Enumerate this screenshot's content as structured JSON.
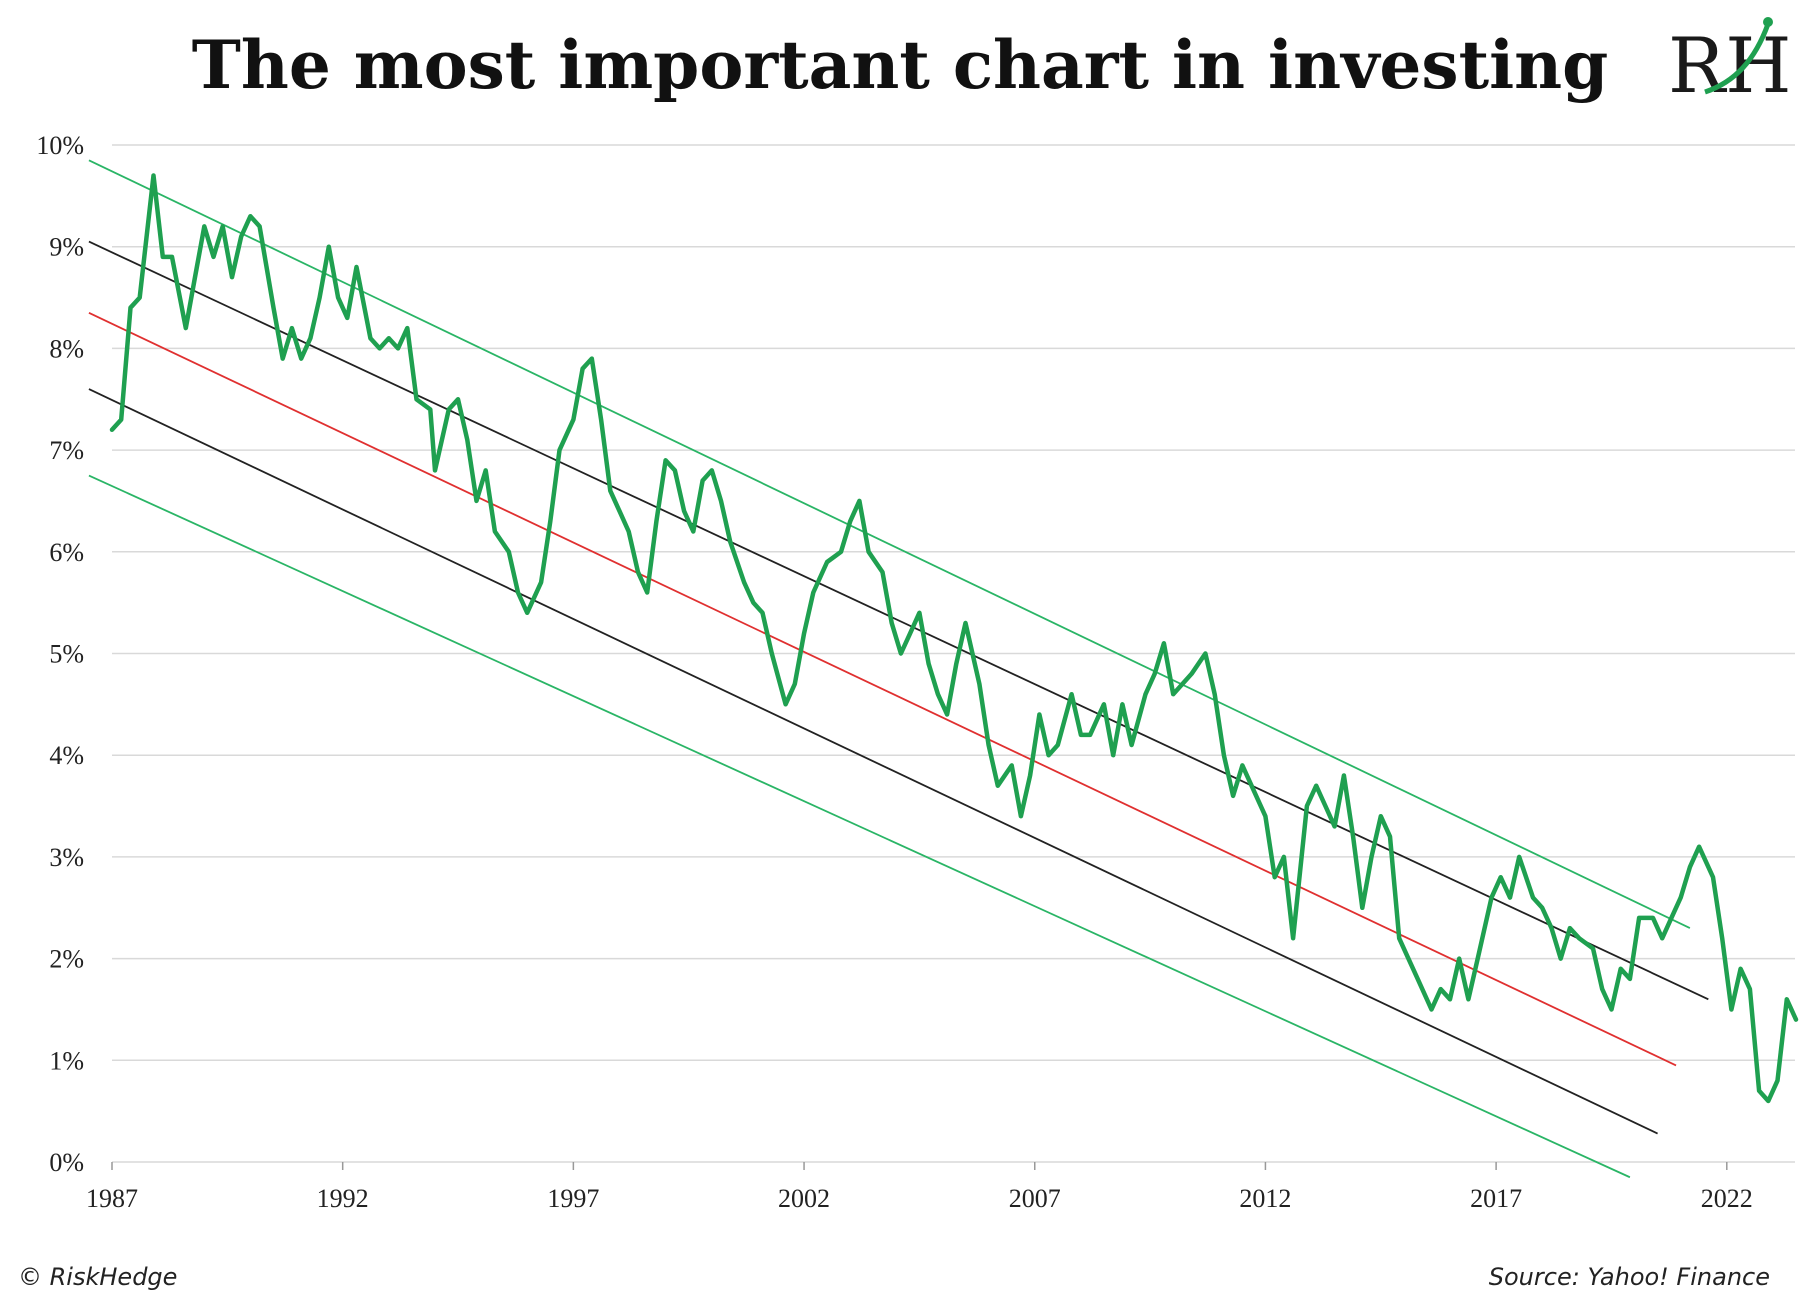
{
  "chart_data": {
    "type": "line",
    "title": "The most important chart in investing",
    "xlabel": "",
    "ylabel": "",
    "x_ticks": [
      "1987",
      "1992",
      "1997",
      "2002",
      "2007",
      "2012",
      "2017",
      "2022"
    ],
    "y_ticks": [
      "0%",
      "1%",
      "2%",
      "3%",
      "4%",
      "5%",
      "6%",
      "7%",
      "8%",
      "9%",
      "10%"
    ],
    "xlim": [
      1987,
      2023.5
    ],
    "ylim": [
      0,
      10
    ],
    "grid": "horizontal",
    "legend": "none",
    "series": [
      {
        "color": "#1fa050",
        "points": [
          [
            1987.0,
            7.2
          ],
          [
            1987.2,
            7.3
          ],
          [
            1987.4,
            8.4
          ],
          [
            1987.6,
            8.5
          ],
          [
            1987.9,
            9.7
          ],
          [
            1988.1,
            8.9
          ],
          [
            1988.3,
            8.9
          ],
          [
            1988.6,
            8.2
          ],
          [
            1988.8,
            8.7
          ],
          [
            1989.0,
            9.2
          ],
          [
            1989.2,
            8.9
          ],
          [
            1989.4,
            9.2
          ],
          [
            1989.6,
            8.7
          ],
          [
            1989.8,
            9.1
          ],
          [
            1990.0,
            9.3
          ],
          [
            1990.2,
            9.2
          ],
          [
            1990.5,
            8.4
          ],
          [
            1990.7,
            7.9
          ],
          [
            1990.9,
            8.2
          ],
          [
            1991.1,
            7.9
          ],
          [
            1991.3,
            8.1
          ],
          [
            1991.5,
            8.5
          ],
          [
            1991.7,
            9.0
          ],
          [
            1991.9,
            8.5
          ],
          [
            1992.1,
            8.3
          ],
          [
            1992.3,
            8.8
          ],
          [
            1992.6,
            8.1
          ],
          [
            1992.8,
            8.0
          ],
          [
            1993.0,
            8.1
          ],
          [
            1993.2,
            8.0
          ],
          [
            1993.4,
            8.2
          ],
          [
            1993.6,
            7.5
          ],
          [
            1993.9,
            7.4
          ],
          [
            1994.0,
            6.8
          ],
          [
            1994.3,
            7.4
          ],
          [
            1994.5,
            7.5
          ],
          [
            1994.7,
            7.1
          ],
          [
            1994.9,
            6.5
          ],
          [
            1995.1,
            6.8
          ],
          [
            1995.3,
            6.2
          ],
          [
            1995.6,
            6.0
          ],
          [
            1995.8,
            5.6
          ],
          [
            1996.0,
            5.4
          ],
          [
            1996.3,
            5.7
          ],
          [
            1996.5,
            6.3
          ],
          [
            1996.7,
            7.0
          ],
          [
            1997.0,
            7.3
          ],
          [
            1997.2,
            7.8
          ],
          [
            1997.4,
            7.9
          ],
          [
            1997.6,
            7.3
          ],
          [
            1997.8,
            6.6
          ],
          [
            1998.0,
            6.4
          ],
          [
            1998.2,
            6.2
          ],
          [
            1998.4,
            5.8
          ],
          [
            1998.6,
            5.6
          ],
          [
            1998.8,
            6.3
          ],
          [
            1999.0,
            6.9
          ],
          [
            1999.2,
            6.8
          ],
          [
            1999.4,
            6.4
          ],
          [
            1999.6,
            6.2
          ],
          [
            1999.8,
            6.7
          ],
          [
            2000.0,
            6.8
          ],
          [
            2000.2,
            6.5
          ],
          [
            2000.4,
            6.1
          ],
          [
            2000.7,
            5.7
          ],
          [
            2000.9,
            5.5
          ],
          [
            2001.1,
            5.4
          ],
          [
            2001.3,
            5.0
          ],
          [
            2001.6,
            4.5
          ],
          [
            2001.8,
            4.7
          ],
          [
            2002.0,
            5.2
          ],
          [
            2002.2,
            5.6
          ],
          [
            2002.5,
            5.9
          ],
          [
            2002.8,
            6.0
          ],
          [
            2003.0,
            6.3
          ],
          [
            2003.2,
            6.5
          ],
          [
            2003.4,
            6.0
          ],
          [
            2003.7,
            5.8
          ],
          [
            2003.9,
            5.3
          ],
          [
            2004.1,
            5.0
          ],
          [
            2004.3,
            5.2
          ],
          [
            2004.5,
            5.4
          ],
          [
            2004.7,
            4.9
          ],
          [
            2004.9,
            4.6
          ],
          [
            2005.1,
            4.4
          ],
          [
            2005.3,
            4.9
          ],
          [
            2005.5,
            5.3
          ],
          [
            2005.8,
            4.7
          ],
          [
            2006.0,
            4.1
          ],
          [
            2006.2,
            3.7
          ],
          [
            2006.5,
            3.9
          ],
          [
            2006.7,
            3.4
          ],
          [
            2006.9,
            3.8
          ],
          [
            2007.1,
            4.4
          ],
          [
            2007.3,
            4.0
          ],
          [
            2007.5,
            4.1
          ],
          [
            2007.8,
            4.6
          ],
          [
            2008.0,
            4.2
          ],
          [
            2008.2,
            4.2
          ],
          [
            2008.5,
            4.5
          ],
          [
            2008.7,
            4.0
          ],
          [
            2008.9,
            4.5
          ],
          [
            2009.1,
            4.1
          ],
          [
            2009.4,
            4.6
          ],
          [
            2009.6,
            4.8
          ],
          [
            2009.8,
            5.1
          ],
          [
            2010.0,
            4.6
          ],
          [
            2010.2,
            4.7
          ],
          [
            2010.4,
            4.8
          ],
          [
            2010.7,
            5.0
          ],
          [
            2010.9,
            4.6
          ],
          [
            2011.1,
            4.0
          ],
          [
            2011.3,
            3.6
          ],
          [
            2011.5,
            3.9
          ],
          [
            2011.8,
            3.6
          ],
          [
            2012.0,
            3.4
          ],
          [
            2012.2,
            2.8
          ],
          [
            2012.4,
            3.0
          ],
          [
            2012.6,
            2.2
          ],
          [
            2012.9,
            3.5
          ],
          [
            2013.1,
            3.7
          ],
          [
            2013.3,
            3.5
          ],
          [
            2013.5,
            3.3
          ],
          [
            2013.7,
            3.8
          ],
          [
            2013.9,
            3.2
          ],
          [
            2014.1,
            2.5
          ],
          [
            2014.3,
            3.0
          ],
          [
            2014.5,
            3.4
          ],
          [
            2014.7,
            3.2
          ],
          [
            2014.9,
            2.2
          ],
          [
            2015.1,
            2.0
          ],
          [
            2015.3,
            1.8
          ],
          [
            2015.6,
            1.5
          ],
          [
            2015.8,
            1.7
          ],
          [
            2016.0,
            1.6
          ],
          [
            2016.2,
            2.0
          ],
          [
            2016.4,
            1.6
          ],
          [
            2016.6,
            2.0
          ],
          [
            2016.9,
            2.6
          ],
          [
            2017.1,
            2.8
          ],
          [
            2017.3,
            2.6
          ],
          [
            2017.5,
            3.0
          ],
          [
            2017.8,
            2.6
          ],
          [
            2018.0,
            2.5
          ],
          [
            2018.2,
            2.3
          ],
          [
            2018.4,
            2.0
          ],
          [
            2018.6,
            2.3
          ],
          [
            2018.8,
            2.2
          ],
          [
            2019.1,
            2.1
          ],
          [
            2019.3,
            1.7
          ],
          [
            2019.5,
            1.5
          ],
          [
            2019.7,
            1.9
          ],
          [
            2019.9,
            1.8
          ],
          [
            2020.1,
            2.4
          ],
          [
            2020.4,
            2.4
          ],
          [
            2020.6,
            2.2
          ],
          [
            2020.8,
            2.4
          ],
          [
            2021.0,
            2.6
          ],
          [
            2021.2,
            2.9
          ],
          [
            2021.4,
            3.1
          ],
          [
            2021.7,
            2.8
          ],
          [
            2021.9,
            2.2
          ],
          [
            2022.1,
            1.5
          ],
          [
            2022.3,
            1.9
          ],
          [
            2022.5,
            1.7
          ],
          [
            2022.7,
            0.7
          ],
          [
            2022.9,
            0.6
          ],
          [
            2023.1,
            0.8
          ],
          [
            2023.3,
            1.6
          ],
          [
            2023.5,
            1.4
          ]
        ]
      }
    ],
    "trend_lines": [
      {
        "color": "#2ab566",
        "start": [
          1986.5,
          9.85
        ],
        "end": [
          2021.2,
          2.3
        ]
      },
      {
        "color": "#222222",
        "start": [
          1986.5,
          9.05
        ],
        "end": [
          2021.6,
          1.6
        ]
      },
      {
        "color": "#e03030",
        "start": [
          1986.5,
          8.35
        ],
        "end": [
          2020.9,
          0.95
        ]
      },
      {
        "color": "#222222",
        "start": [
          1986.5,
          7.6
        ],
        "end": [
          2020.5,
          0.28
        ]
      },
      {
        "color": "#2ab566",
        "start": [
          1986.5,
          6.75
        ],
        "end": [
          2019.9,
          -0.15
        ]
      }
    ]
  },
  "footer": {
    "left": "© RiskHedge",
    "right": "Source: Yahoo! Finance"
  },
  "logo": {
    "text": "RH",
    "accent_color": "#1fa050"
  }
}
